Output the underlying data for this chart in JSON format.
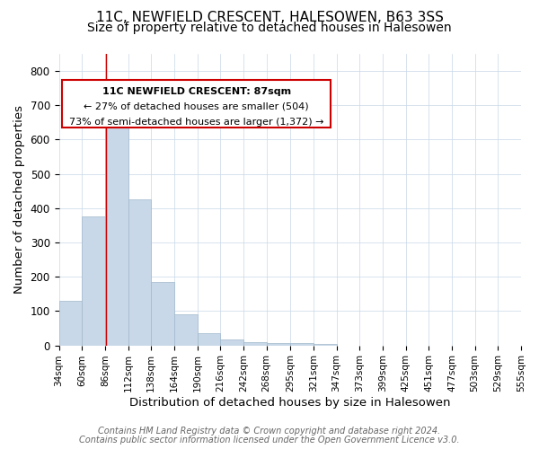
{
  "title": "11C, NEWFIELD CRESCENT, HALESOWEN, B63 3SS",
  "subtitle": "Size of property relative to detached houses in Halesowen",
  "xlabel": "Distribution of detached houses by size in Halesowen",
  "ylabel": "Number of detached properties",
  "bar_left_edges": [
    34,
    60,
    86,
    112,
    138,
    164,
    190,
    216,
    242,
    268,
    295,
    321
  ],
  "bar_heights": [
    130,
    375,
    635,
    425,
    185,
    90,
    35,
    18,
    10,
    7,
    8,
    5
  ],
  "bar_widths": [
    26,
    26,
    26,
    26,
    26,
    26,
    26,
    26,
    26,
    27,
    26,
    26
  ],
  "bar_color": "#c8d8e8",
  "bar_edgecolor": "#a0b8cc",
  "x_ticks": [
    34,
    60,
    86,
    112,
    138,
    164,
    190,
    216,
    242,
    268,
    295,
    321,
    347,
    373,
    399,
    425,
    451,
    477,
    503,
    529,
    555
  ],
  "x_tick_labels": [
    "34sqm",
    "60sqm",
    "86sqm",
    "112sqm",
    "138sqm",
    "164sqm",
    "190sqm",
    "216sqm",
    "242sqm",
    "268sqm",
    "295sqm",
    "321sqm",
    "347sqm",
    "373sqm",
    "399sqm",
    "425sqm",
    "451sqm",
    "477sqm",
    "503sqm",
    "529sqm",
    "555sqm"
  ],
  "y_ticks": [
    0,
    100,
    200,
    300,
    400,
    500,
    600,
    700,
    800
  ],
  "ylim": [
    0,
    850
  ],
  "xlim": [
    34,
    555
  ],
  "property_line_x": 87,
  "property_line_color": "#cc0000",
  "annotation_line1": "11C NEWFIELD CRESCENT: 87sqm",
  "annotation_line2": "← 27% of detached houses are smaller (504)",
  "annotation_line3": "73% of semi-detached houses are larger (1,372) →",
  "annotation_box_color": "#cc0000",
  "footer_line1": "Contains HM Land Registry data © Crown copyright and database right 2024.",
  "footer_line2": "Contains public sector information licensed under the Open Government Licence v3.0.",
  "background_color": "#ffffff",
  "grid_color": "#c8d8e8",
  "title_fontsize": 11,
  "subtitle_fontsize": 10,
  "axis_label_fontsize": 9.5,
  "tick_fontsize": 7.5,
  "annotation_fontsize": 8,
  "footer_fontsize": 7
}
